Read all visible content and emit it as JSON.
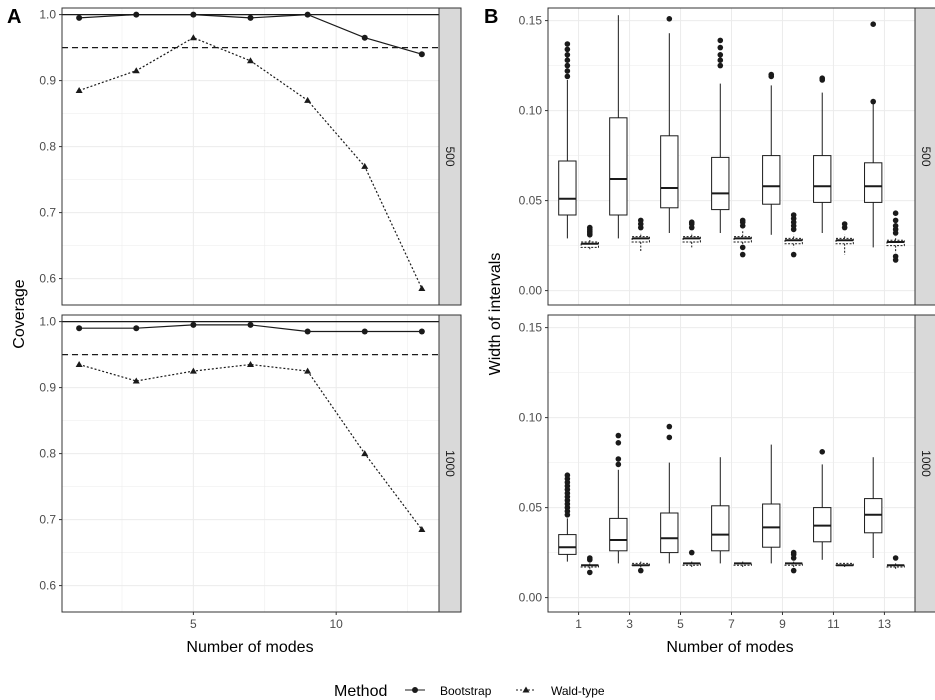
{
  "panel_labels": [
    "A",
    "B"
  ],
  "strip_labels": [
    "500",
    "1000"
  ],
  "legend": {
    "title": "Method",
    "entries": [
      {
        "name": "Bootstrap",
        "linetype": "solid",
        "shape": "circle"
      },
      {
        "name": "Wald-type",
        "linetype": "dotted",
        "shape": "triangle"
      }
    ]
  },
  "colors": {
    "panel_bg": "#ffffff",
    "grid": "#ebebeb",
    "border": "#333333",
    "strip_bg": "#d9d9d9",
    "ink": "#1a1a1a"
  },
  "chart_data": [
    {
      "type": "line",
      "panel": "A",
      "xlabel": "Number of modes",
      "ylabel": "Coverage",
      "xlim": [
        0.4,
        13.6
      ],
      "ylim": [
        0.56,
        1.01
      ],
      "x_ticks": [
        5,
        10
      ],
      "y_ticks": [
        0.6,
        0.7,
        0.8,
        0.9,
        1.0
      ],
      "reference_lines": [
        {
          "y": 1.0,
          "style": "solid"
        },
        {
          "y": 0.95,
          "style": "dashed"
        }
      ],
      "grid": true,
      "facets": [
        {
          "label": "500",
          "series": [
            {
              "name": "Bootstrap",
              "x": [
                1,
                3,
                5,
                7,
                9,
                11,
                13
              ],
              "y": [
                0.995,
                1.0,
                1.0,
                0.995,
                1.0,
                0.965,
                0.94
              ]
            },
            {
              "name": "Wald-type",
              "x": [
                1,
                3,
                5,
                7,
                9,
                11,
                13
              ],
              "y": [
                0.885,
                0.915,
                0.965,
                0.93,
                0.87,
                0.77,
                0.585
              ]
            }
          ]
        },
        {
          "label": "1000",
          "series": [
            {
              "name": "Bootstrap",
              "x": [
                1,
                3,
                5,
                7,
                9,
                11,
                13
              ],
              "y": [
                0.99,
                0.99,
                0.995,
                0.995,
                0.985,
                0.985,
                0.985
              ]
            },
            {
              "name": "Wald-type",
              "x": [
                1,
                3,
                5,
                7,
                9,
                11,
                13
              ],
              "y": [
                0.935,
                0.91,
                0.925,
                0.935,
                0.925,
                0.8,
                0.685
              ]
            }
          ]
        }
      ]
    },
    {
      "type": "box",
      "panel": "B",
      "xlabel": "Number of modes",
      "ylabel": "Width of intervals",
      "categories": [
        "1",
        "3",
        "5",
        "7",
        "9",
        "11",
        "13"
      ],
      "ylim": [
        -0.008,
        0.157
      ],
      "y_ticks": [
        0.0,
        0.05,
        0.1,
        0.15
      ],
      "y_tick_labels": [
        "0.00",
        "0.05",
        "0.10",
        "0.15"
      ],
      "grid": true,
      "facets": [
        {
          "label": "500",
          "series": [
            {
              "name": "Bootstrap",
              "boxes": [
                {
                  "min": 0.029,
                  "q1": 0.042,
                  "median": 0.051,
                  "q3": 0.072,
                  "max": 0.117,
                  "outliers": [
                    0.119,
                    0.122,
                    0.125,
                    0.128,
                    0.131,
                    0.134,
                    0.137
                  ]
                },
                {
                  "min": 0.029,
                  "q1": 0.042,
                  "median": 0.062,
                  "q3": 0.096,
                  "max": 0.153,
                  "outliers": []
                },
                {
                  "min": 0.032,
                  "q1": 0.046,
                  "median": 0.057,
                  "q3": 0.086,
                  "max": 0.143,
                  "outliers": [
                    0.151
                  ]
                },
                {
                  "min": 0.032,
                  "q1": 0.045,
                  "median": 0.054,
                  "q3": 0.074,
                  "max": 0.115,
                  "outliers": [
                    0.125,
                    0.128,
                    0.131,
                    0.135,
                    0.139
                  ]
                },
                {
                  "min": 0.031,
                  "q1": 0.048,
                  "median": 0.058,
                  "q3": 0.075,
                  "max": 0.114,
                  "outliers": [
                    0.119,
                    0.12
                  ]
                },
                {
                  "min": 0.032,
                  "q1": 0.049,
                  "median": 0.058,
                  "q3": 0.075,
                  "max": 0.11,
                  "outliers": [
                    0.117,
                    0.118
                  ]
                },
                {
                  "min": 0.024,
                  "q1": 0.049,
                  "median": 0.058,
                  "q3": 0.071,
                  "max": 0.105,
                  "outliers": [
                    0.105,
                    0.148
                  ]
                }
              ]
            },
            {
              "name": "Wald-type",
              "boxes": [
                {
                  "min": 0.023,
                  "q1": 0.024,
                  "median": 0.026,
                  "q3": 0.027,
                  "max": 0.029,
                  "outliers": [
                    0.031,
                    0.032,
                    0.033,
                    0.034,
                    0.035
                  ]
                },
                {
                  "min": 0.022,
                  "q1": 0.027,
                  "median": 0.029,
                  "q3": 0.03,
                  "max": 0.032,
                  "outliers": [
                    0.035,
                    0.037,
                    0.039
                  ]
                },
                {
                  "min": 0.024,
                  "q1": 0.027,
                  "median": 0.029,
                  "q3": 0.03,
                  "max": 0.032,
                  "outliers": [
                    0.035,
                    0.037,
                    0.038
                  ]
                },
                {
                  "min": 0.024,
                  "q1": 0.027,
                  "median": 0.029,
                  "q3": 0.03,
                  "max": 0.033,
                  "outliers": [
                    0.02,
                    0.024,
                    0.036,
                    0.038,
                    0.039
                  ]
                },
                {
                  "min": 0.024,
                  "q1": 0.026,
                  "median": 0.028,
                  "q3": 0.029,
                  "max": 0.031,
                  "outliers": [
                    0.02,
                    0.034,
                    0.036,
                    0.038,
                    0.04,
                    0.042
                  ]
                },
                {
                  "min": 0.02,
                  "q1": 0.026,
                  "median": 0.028,
                  "q3": 0.029,
                  "max": 0.031,
                  "outliers": [
                    0.035,
                    0.037
                  ]
                },
                {
                  "min": 0.021,
                  "q1": 0.025,
                  "median": 0.027,
                  "q3": 0.028,
                  "max": 0.03,
                  "outliers": [
                    0.017,
                    0.019,
                    0.032,
                    0.034,
                    0.036,
                    0.039,
                    0.043
                  ]
                }
              ]
            }
          ]
        },
        {
          "label": "1000",
          "series": [
            {
              "name": "Bootstrap",
              "boxes": [
                {
                  "min": 0.02,
                  "q1": 0.024,
                  "median": 0.028,
                  "q3": 0.035,
                  "max": 0.044,
                  "outliers": [
                    0.046,
                    0.048,
                    0.05,
                    0.052,
                    0.054,
                    0.056,
                    0.058,
                    0.06,
                    0.062,
                    0.064,
                    0.066,
                    0.068
                  ]
                },
                {
                  "min": 0.019,
                  "q1": 0.026,
                  "median": 0.032,
                  "q3": 0.044,
                  "max": 0.071,
                  "outliers": [
                    0.074,
                    0.077,
                    0.086,
                    0.09
                  ]
                },
                {
                  "min": 0.019,
                  "q1": 0.025,
                  "median": 0.033,
                  "q3": 0.047,
                  "max": 0.075,
                  "outliers": [
                    0.089,
                    0.095
                  ]
                },
                {
                  "min": 0.019,
                  "q1": 0.026,
                  "median": 0.035,
                  "q3": 0.051,
                  "max": 0.078,
                  "outliers": []
                },
                {
                  "min": 0.019,
                  "q1": 0.028,
                  "median": 0.039,
                  "q3": 0.052,
                  "max": 0.085,
                  "outliers": []
                },
                {
                  "min": 0.021,
                  "q1": 0.031,
                  "median": 0.04,
                  "q3": 0.05,
                  "max": 0.074,
                  "outliers": [
                    0.081
                  ]
                },
                {
                  "min": 0.022,
                  "q1": 0.036,
                  "median": 0.046,
                  "q3": 0.055,
                  "max": 0.078,
                  "outliers": []
                }
              ]
            },
            {
              "name": "Wald-type",
              "boxes": [
                {
                  "min": 0.016,
                  "q1": 0.017,
                  "median": 0.018,
                  "q3": 0.018,
                  "max": 0.019,
                  "outliers": [
                    0.014,
                    0.021,
                    0.022
                  ]
                },
                {
                  "min": 0.016,
                  "q1": 0.018,
                  "median": 0.018,
                  "q3": 0.019,
                  "max": 0.02,
                  "outliers": [
                    0.015
                  ]
                },
                {
                  "min": 0.017,
                  "q1": 0.018,
                  "median": 0.019,
                  "q3": 0.019,
                  "max": 0.02,
                  "outliers": [
                    0.025
                  ]
                },
                {
                  "min": 0.017,
                  "q1": 0.018,
                  "median": 0.019,
                  "q3": 0.019,
                  "max": 0.02,
                  "outliers": []
                },
                {
                  "min": 0.017,
                  "q1": 0.018,
                  "median": 0.019,
                  "q3": 0.019,
                  "max": 0.02,
                  "outliers": [
                    0.015,
                    0.022,
                    0.024,
                    0.025
                  ]
                },
                {
                  "min": 0.017,
                  "q1": 0.018,
                  "median": 0.018,
                  "q3": 0.019,
                  "max": 0.019,
                  "outliers": []
                },
                {
                  "min": 0.016,
                  "q1": 0.017,
                  "median": 0.018,
                  "q3": 0.018,
                  "max": 0.019,
                  "outliers": [
                    0.022
                  ]
                }
              ]
            }
          ]
        }
      ]
    }
  ]
}
